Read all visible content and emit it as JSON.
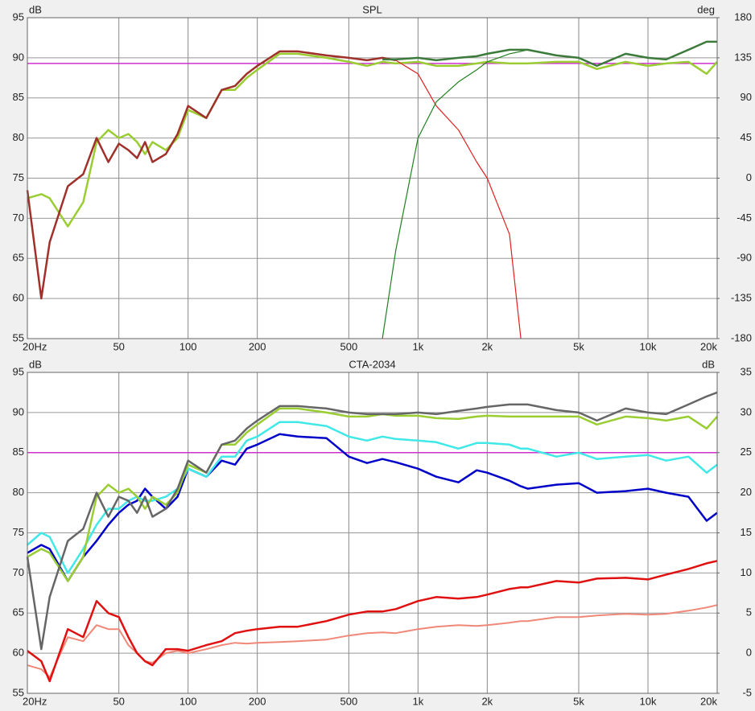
{
  "chart_data": [
    {
      "type": "line",
      "title": "SPL",
      "ylabel": "dB",
      "y2label": "deg",
      "xscale": "log",
      "grid": true,
      "x": [
        20,
        23,
        25,
        30,
        35,
        40,
        45,
        50,
        55,
        60,
        65,
        70,
        80,
        90,
        100,
        120,
        140,
        160,
        180,
        200,
        250,
        300,
        400,
        500,
        600,
        700,
        800,
        1000,
        1200,
        1500,
        1800,
        2000,
        2500,
        2800,
        3000,
        4000,
        5000,
        6000,
        8000,
        10000,
        12000,
        15000,
        18000,
        20000
      ],
      "xlim": [
        20,
        20000
      ],
      "xticks": [
        {
          "value": 20,
          "label": "20Hz"
        },
        50,
        100,
        200,
        500,
        {
          "value": 1000,
          "label": "1k"
        },
        {
          "value": 2000,
          "label": "2k"
        },
        {
          "value": 5000,
          "label": "5k"
        },
        {
          "value": 10000,
          "label": "10k"
        },
        {
          "value": 20000,
          "label": "20k"
        }
      ],
      "ylim": [
        55,
        95
      ],
      "yticks": [
        55,
        60,
        65,
        70,
        75,
        80,
        85,
        90,
        95
      ],
      "y2lim": [
        -180,
        180
      ],
      "y2ticks": [
        -180,
        -135,
        -90,
        -45,
        0,
        45,
        90,
        135,
        180
      ],
      "hlines": [
        {
          "value": 89.3,
          "color": "#d030d0"
        }
      ],
      "series": [
        {
          "color": "#9acd32",
          "line_width": 2.5,
          "values": [
            72.5,
            73,
            72.5,
            69,
            72,
            79.5,
            81,
            80,
            80.5,
            79.5,
            78,
            79.5,
            78.5,
            80,
            83.5,
            82.5,
            86,
            86,
            87.5,
            88.5,
            90.5,
            90.5,
            90,
            89.5,
            89,
            89.5,
            89.3,
            89.5,
            89,
            89,
            89.3,
            89.5,
            89.3,
            89.3,
            89.3,
            89.5,
            89.5,
            88.6,
            89.5,
            89,
            89.3,
            89.5,
            88,
            89.5
          ]
        },
        {
          "color": "#e02020",
          "line_width": 1.2,
          "values": [
            null,
            null,
            null,
            null,
            null,
            null,
            null,
            null,
            null,
            null,
            null,
            null,
            null,
            null,
            null,
            null,
            null,
            null,
            null,
            null,
            null,
            null,
            null,
            null,
            null,
            90,
            89.7,
            88,
            84,
            81,
            77,
            75,
            68,
            55,
            null,
            null,
            null,
            null,
            null,
            null,
            null,
            null,
            null,
            null
          ]
        },
        {
          "color": "#208020",
          "line_width": 1.2,
          "values": [
            null,
            null,
            null,
            null,
            null,
            null,
            null,
            null,
            null,
            null,
            null,
            null,
            null,
            null,
            null,
            null,
            null,
            null,
            null,
            null,
            null,
            null,
            null,
            null,
            null,
            55,
            66,
            80,
            84.5,
            87,
            88.5,
            89.5,
            90.5,
            90.8,
            91,
            null,
            null,
            null,
            null,
            null,
            null,
            null,
            null,
            null
          ]
        },
        {
          "color": "#a0302a",
          "line_width": 2.5,
          "values": [
            73.5,
            60,
            67,
            74,
            75.5,
            80,
            77,
            79.3,
            78.5,
            77.5,
            79.5,
            77,
            78,
            80.5,
            84,
            82.5,
            86,
            86.5,
            88,
            89,
            90.8,
            90.8,
            90.3,
            90,
            89.7,
            90,
            89.7,
            null,
            null,
            null,
            null,
            null,
            null,
            null,
            null,
            null,
            null,
            null,
            null,
            null,
            null,
            null,
            null,
            null
          ]
        },
        {
          "color": "#3c7a3c",
          "line_width": 2.5,
          "values": [
            null,
            null,
            null,
            null,
            null,
            null,
            null,
            null,
            null,
            null,
            null,
            null,
            null,
            null,
            null,
            null,
            null,
            null,
            null,
            null,
            null,
            null,
            null,
            null,
            null,
            89.8,
            89.8,
            90,
            89.7,
            90,
            90.2,
            90.5,
            91,
            91,
            91,
            90.3,
            90,
            89,
            90.5,
            90,
            89.8,
            91,
            92,
            92
          ]
        }
      ]
    },
    {
      "type": "line",
      "title": "CTA-2034",
      "ylabel": "dB",
      "y2label": "dB",
      "xscale": "log",
      "grid": true,
      "x": [
        20,
        23,
        25,
        30,
        35,
        40,
        45,
        50,
        55,
        60,
        65,
        70,
        80,
        90,
        100,
        120,
        140,
        160,
        180,
        200,
        250,
        300,
        400,
        500,
        600,
        700,
        800,
        1000,
        1200,
        1500,
        1800,
        2000,
        2500,
        2800,
        3000,
        4000,
        5000,
        6000,
        8000,
        10000,
        12000,
        15000,
        18000,
        20000
      ],
      "xlim": [
        20,
        20000
      ],
      "xticks": [
        {
          "value": 20,
          "label": "20Hz"
        },
        50,
        100,
        200,
        500,
        {
          "value": 1000,
          "label": "1k"
        },
        {
          "value": 2000,
          "label": "2k"
        },
        {
          "value": 5000,
          "label": "5k"
        },
        {
          "value": 10000,
          "label": "10k"
        },
        {
          "value": 20000,
          "label": "20k"
        }
      ],
      "ylim": [
        55,
        95
      ],
      "yticks": [
        55,
        60,
        65,
        70,
        75,
        80,
        85,
        90,
        95
      ],
      "y2lim": [
        -5,
        35
      ],
      "y2ticks": [
        -5,
        0,
        5,
        10,
        15,
        20,
        25,
        30,
        35
      ],
      "hlines": [
        {
          "value": 85,
          "color": "#d030d0"
        }
      ],
      "series": [
        {
          "color": "#f08878",
          "line_width": 2,
          "axis": "y2",
          "values": [
            -1.5,
            -2,
            -3,
            2,
            1.5,
            3.5,
            3,
            3,
            1,
            0,
            -1,
            -1.2,
            0,
            0.3,
            0,
            0.5,
            1,
            1.3,
            1.2,
            1.3,
            1.4,
            1.5,
            1.7,
            2.2,
            2.5,
            2.6,
            2.5,
            3,
            3.3,
            3.5,
            3.4,
            3.5,
            3.8,
            4,
            4,
            4.5,
            4.5,
            4.7,
            4.9,
            4.8,
            4.9,
            5.3,
            5.7,
            6
          ]
        },
        {
          "color": "#e01010",
          "line_width": 2.5,
          "axis": "y2",
          "values": [
            0.3,
            -1,
            -3.5,
            3,
            2,
            6.5,
            5,
            4.5,
            2,
            0,
            -1,
            -1.5,
            0.5,
            0.5,
            0.3,
            1,
            1.5,
            2.5,
            2.8,
            3,
            3.3,
            3.3,
            4,
            4.8,
            5.2,
            5.2,
            5.5,
            6.5,
            7,
            6.8,
            7,
            7.3,
            8,
            8.2,
            8.2,
            9,
            8.8,
            9.3,
            9.4,
            9.2,
            9.8,
            10.5,
            11.2,
            11.5
          ]
        },
        {
          "color": "#0000c8",
          "line_width": 2.5,
          "values": [
            72.5,
            73.5,
            73,
            69,
            72,
            74,
            76,
            77.5,
            78.5,
            79,
            80.5,
            79.5,
            78,
            79.5,
            83,
            82,
            84,
            83.5,
            85.5,
            86,
            87.3,
            87,
            86.8,
            84.5,
            83.7,
            84.2,
            83.8,
            83,
            82,
            81.3,
            82.8,
            82.5,
            81.5,
            80.8,
            80.5,
            81,
            81.2,
            80,
            80.2,
            80.5,
            80,
            79.5,
            76.5,
            77.5
          ]
        },
        {
          "color": "#40e8e8",
          "line_width": 2.5,
          "values": [
            73.5,
            75,
            74.5,
            70,
            73,
            76,
            78,
            78,
            79,
            79.5,
            79,
            79,
            79.5,
            80.5,
            83,
            82,
            84.5,
            84.5,
            86.5,
            87,
            88.8,
            88.8,
            88.3,
            87,
            86.5,
            87,
            86.7,
            86.5,
            86.3,
            85.5,
            86.2,
            86.2,
            86,
            85.5,
            85.5,
            84.5,
            85,
            84.2,
            84.5,
            84.7,
            84,
            84.5,
            82.5,
            83.5
          ]
        },
        {
          "color": "#9acd32",
          "line_width": 2.5,
          "values": [
            72,
            73,
            72.5,
            69,
            72,
            79.5,
            81,
            80,
            80.5,
            79.5,
            78,
            79.5,
            78.5,
            80,
            83.5,
            82.5,
            86,
            86,
            87.5,
            88.5,
            90.5,
            90.5,
            90,
            89.5,
            89.5,
            89.8,
            89.6,
            89.6,
            89.3,
            89.2,
            89.5,
            89.6,
            89.5,
            89.5,
            89.5,
            89.5,
            89.5,
            88.5,
            89.5,
            89.3,
            89,
            89.5,
            88,
            89.5
          ]
        },
        {
          "color": "#666666",
          "line_width": 2.5,
          "values": [
            72,
            60.5,
            67,
            74,
            75.5,
            80,
            77,
            79.5,
            79,
            77.5,
            79.5,
            77,
            78,
            80.5,
            84,
            82.5,
            86,
            86.5,
            88,
            89,
            90.8,
            90.8,
            90.5,
            90,
            89.8,
            89.8,
            89.8,
            90,
            89.8,
            90.2,
            90.5,
            90.7,
            91,
            91,
            91,
            90.3,
            90,
            89,
            90.5,
            90,
            89.8,
            91,
            92,
            92.5
          ]
        }
      ]
    }
  ]
}
